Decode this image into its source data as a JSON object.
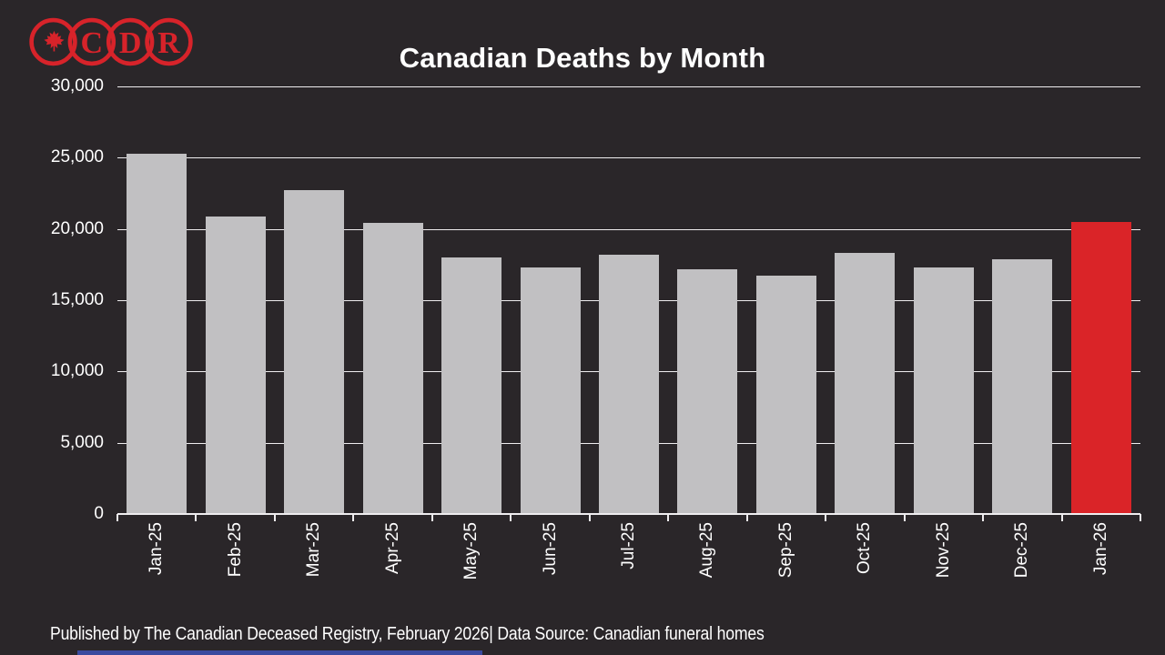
{
  "page": {
    "background": "#2a2629"
  },
  "logo": {
    "letters": [
      "C",
      "D",
      "R"
    ],
    "icon": "maple-leaf",
    "color": "#d7232a"
  },
  "title": "Canadian Deaths by Month",
  "footer": "Published by The Canadian Deceased Registry, February 2026| Data Source: Canadian funeral homes",
  "chart_data": {
    "type": "bar",
    "title": "Canadian Deaths by Month",
    "categories": [
      "Jan-25",
      "Feb-25",
      "Mar-25",
      "Apr-25",
      "May-25",
      "Jun-25",
      "Jul-25",
      "Aug-25",
      "Sep-25",
      "Oct-25",
      "Nov-25",
      "Dec-25",
      "Jan-26"
    ],
    "values": [
      25300,
      20900,
      22700,
      20400,
      18000,
      17300,
      18200,
      17200,
      16700,
      18300,
      17300,
      17900,
      20500
    ],
    "bar_color": "#c1c0c2",
    "highlight_index": 12,
    "highlight_color": "#da2428",
    "xlabel": "",
    "ylabel": "",
    "ylim": [
      0,
      30000
    ],
    "ytick_step": 5000,
    "ytick_labels": [
      "0",
      "5,000",
      "10,000",
      "15,000",
      "20,000",
      "25,000",
      "30,000"
    ],
    "grid": true,
    "gridline_color": "#efedef",
    "legend_position": "none",
    "x_label_rotation": -90,
    "background": "#2a2629",
    "text_color": "#ffffff"
  }
}
